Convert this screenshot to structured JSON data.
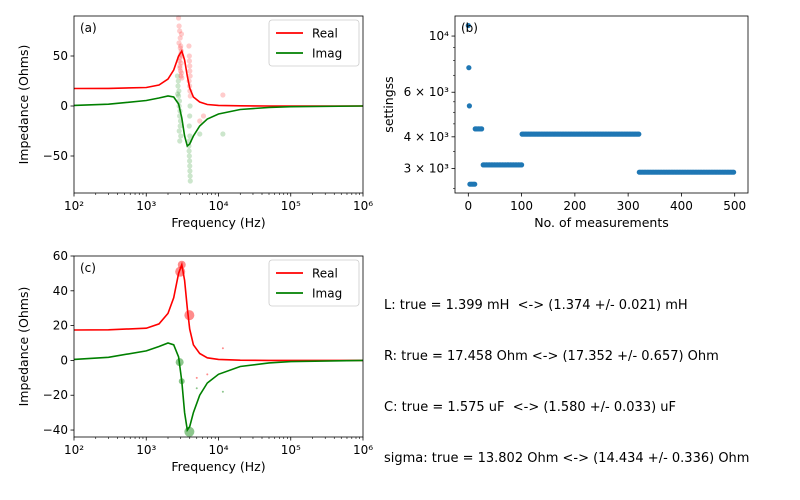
{
  "chart_data": [
    {
      "type": "line",
      "panel_label": "(a)",
      "xlabel": "Frequency (Hz)",
      "ylabel": "Impedance (Ohms)",
      "xscale": "log",
      "xlim": [
        100,
        1000000
      ],
      "ylim": [
        -87,
        90
      ],
      "xticks": [
        100,
        1000,
        10000,
        100000,
        1000000
      ],
      "xtick_labels": [
        "10²",
        "10³",
        "10⁴",
        "10⁵",
        "10⁶"
      ],
      "yticks": [
        -50,
        0,
        50
      ],
      "ytick_labels": [
        "−50",
        "0",
        "50"
      ],
      "legend": "top-right",
      "series": [
        {
          "name": "Real",
          "color": "#ff0000",
          "x": [
            100,
            300,
            1000,
            1500,
            2000,
            2400,
            2800,
            3100,
            3400,
            3700,
            4000,
            4500,
            5500,
            7000,
            10000,
            20000,
            50000,
            100000,
            1000000
          ],
          "y": [
            17.5,
            17.6,
            18.5,
            21,
            27,
            36,
            50,
            55,
            46,
            30,
            18,
            9,
            4,
            1.5,
            0.6,
            0.15,
            0.03,
            0.01,
            0
          ]
        },
        {
          "name": "Imag",
          "color": "#008000",
          "x": [
            100,
            300,
            1000,
            1500,
            2000,
            2400,
            2800,
            3100,
            3400,
            3700,
            4000,
            4500,
            5500,
            7000,
            10000,
            20000,
            50000,
            100000,
            1000000
          ],
          "y": [
            0.6,
            1.8,
            5.5,
            8,
            10,
            9,
            2,
            -12,
            -30,
            -40,
            -38,
            -30,
            -20,
            -13,
            -8,
            -3.5,
            -1.4,
            -0.7,
            0
          ]
        }
      ],
      "scatter": [
        {
          "name": "Real samples",
          "color": "#ff0000",
          "x": [
            2800,
            2850,
            2900,
            2950,
            3000,
            3050,
            3100,
            2870,
            2920,
            2980,
            3020,
            3070,
            2840,
            2960,
            3010,
            2890,
            3040,
            2930,
            3080,
            3110,
            3900,
            3950,
            4000,
            4050,
            3920,
            3980,
            4020,
            4070,
            3960,
            4010,
            5500,
            6200,
            11500
          ],
          "y": [
            88,
            80,
            75,
            68,
            60,
            55,
            50,
            45,
            40,
            35,
            30,
            72,
            63,
            58,
            52,
            48,
            43,
            38,
            33,
            28,
            60,
            50,
            40,
            30,
            25,
            20,
            15,
            10,
            45,
            35,
            -15,
            -10,
            11
          ]
        },
        {
          "name": "Imag samples",
          "color": "#008000",
          "x": [
            2700,
            2750,
            2800,
            2850,
            2900,
            2950,
            3000,
            2780,
            2830,
            2880,
            2930,
            2980,
            2720,
            2860,
            2910,
            3900,
            3950,
            4000,
            4050,
            3920,
            3980,
            4020,
            4070,
            3960,
            4010,
            3940,
            3990,
            4040,
            5500,
            11500
          ],
          "y": [
            30,
            20,
            10,
            0,
            -10,
            -20,
            -30,
            25,
            15,
            5,
            -5,
            -15,
            12,
            -25,
            -35,
            -40,
            -50,
            -60,
            -70,
            -45,
            -55,
            -65,
            -75,
            -35,
            -30,
            -20,
            -10,
            0,
            -28,
            -28
          ]
        }
      ]
    },
    {
      "type": "scatter",
      "panel_label": "(b)",
      "xlabel": "No. of measurements",
      "ylabel": "settingss",
      "yscale": "log",
      "xlim": [
        -25,
        525
      ],
      "ylim": [
        2400,
        12000
      ],
      "xticks": [
        0,
        100,
        200,
        300,
        400,
        500
      ],
      "xtick_labels": [
        "0",
        "100",
        "200",
        "300",
        "400",
        "500"
      ],
      "yticks": [
        3000,
        4000,
        6000,
        10000
      ],
      "ytick_labels": [
        "3 × 10³",
        "4 × 10³",
        "6 × 10³",
        "10⁴"
      ],
      "color": "#1f77b4",
      "segments": [
        {
          "x_start": 0,
          "x_end": 0,
          "step": 1,
          "y": 11000
        },
        {
          "x_start": 1,
          "x_end": 1,
          "step": 1,
          "y": 7500
        },
        {
          "x_start": 2,
          "x_end": 2,
          "step": 1,
          "y": 5300
        },
        {
          "x_start": 3,
          "x_end": 12,
          "step": 3,
          "y": 2600
        },
        {
          "x_start": 13,
          "x_end": 27,
          "step": 3,
          "y": 4300
        },
        {
          "x_start": 28,
          "x_end": 100,
          "step": 3,
          "y": 3100
        },
        {
          "x_start": 101,
          "x_end": 320,
          "step": 3,
          "y": 4100
        },
        {
          "x_start": 321,
          "x_end": 500,
          "step": 3,
          "y": 2900
        }
      ]
    },
    {
      "type": "line",
      "panel_label": "(c)",
      "xlabel": "Frequency (Hz)",
      "ylabel": "Impedance (Ohms)",
      "xscale": "log",
      "xlim": [
        100,
        1000000
      ],
      "ylim": [
        -44,
        60
      ],
      "xticks": [
        100,
        1000,
        10000,
        100000,
        1000000
      ],
      "xtick_labels": [
        "10²",
        "10³",
        "10⁴",
        "10⁵",
        "10⁶"
      ],
      "yticks": [
        -40,
        -20,
        0,
        20,
        40,
        60
      ],
      "ytick_labels": [
        "−40",
        "−20",
        "0",
        "20",
        "40",
        "60"
      ],
      "legend": "top-right",
      "series": [
        {
          "name": "Real",
          "color": "#ff0000",
          "x": [
            100,
            300,
            1000,
            1500,
            2000,
            2400,
            2800,
            3100,
            3400,
            3700,
            4000,
            4500,
            5500,
            7000,
            10000,
            20000,
            50000,
            100000,
            1000000
          ],
          "y": [
            17.5,
            17.6,
            18.5,
            21,
            27,
            36,
            50,
            55,
            46,
            30,
            18,
            9,
            4,
            1.5,
            0.6,
            0.15,
            0.03,
            0.01,
            0
          ]
        },
        {
          "name": "Imag",
          "color": "#008000",
          "x": [
            100,
            300,
            1000,
            1500,
            2000,
            2400,
            2800,
            3100,
            3400,
            3700,
            4000,
            4500,
            5500,
            7000,
            10000,
            20000,
            50000,
            100000,
            1000000
          ],
          "y": [
            0.6,
            1.8,
            5.5,
            8,
            10,
            9,
            2,
            -12,
            -30,
            -40,
            -38,
            -30,
            -20,
            -13,
            -8,
            -3.5,
            -1.4,
            -0.7,
            0
          ]
        }
      ],
      "scatter": [
        {
          "name": "Real samples",
          "color": "#ff0000",
          "points": [
            [
              2950,
              51,
              5
            ],
            [
              3100,
              55,
              4
            ],
            [
              3950,
              26,
              5
            ],
            [
              5000,
              -10,
              1
            ],
            [
              7000,
              -8,
              1
            ],
            [
              11500,
              7,
              1
            ]
          ]
        },
        {
          "name": "Imag samples",
          "color": "#008000",
          "points": [
            [
              2900,
              -1,
              4
            ],
            [
              3100,
              -12,
              3
            ],
            [
              3950,
              -41,
              5
            ],
            [
              5000,
              -16,
              1
            ],
            [
              11500,
              -18,
              1
            ]
          ]
        }
      ]
    }
  ],
  "summary": {
    "lines": [
      "L: true = 1.399 mH  <-> (1.374 +/- 0.021) mH",
      "R: true = 17.458 Ohm <-> (17.352 +/- 0.657) Ohm",
      "C: true = 1.575 uF  <-> (1.580 +/- 0.033) uF",
      "sigma: true = 13.802 Ohm <-> (14.434 +/- 0.336) Ohm"
    ]
  }
}
